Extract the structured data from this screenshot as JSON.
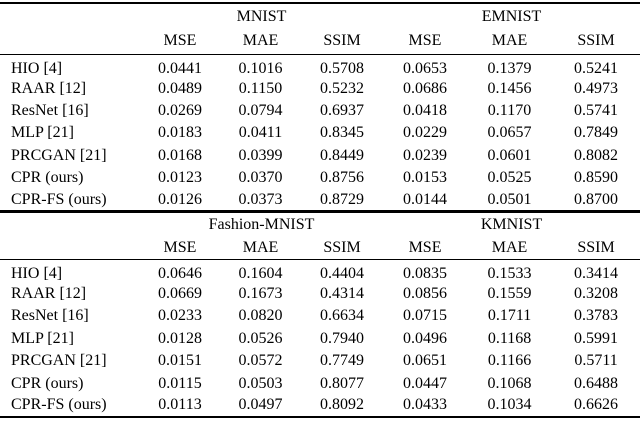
{
  "page": {
    "background_color": "#ffffff",
    "text_color": "#000000",
    "description": "Benchmark results tables comparing phase retrieval methods (MSE, MAE, SSIM) across four datasets"
  },
  "tables": [
    {
      "dataset_groups": [
        "MNIST",
        "EMNIST"
      ],
      "metric_headers": [
        "MSE",
        "MAE",
        "SSIM",
        "MSE",
        "MAE",
        "SSIM"
      ],
      "rows": [
        {
          "label": "HIO [4]",
          "values": [
            "0.0441",
            "0.1016",
            "0.5708",
            "0.0653",
            "0.1379",
            "0.5241"
          ],
          "bold": [
            false,
            false,
            false,
            false,
            false,
            false
          ]
        },
        {
          "label": "RAAR [12]",
          "values": [
            "0.0489",
            "0.1150",
            "0.5232",
            "0.0686",
            "0.1456",
            "0.4973"
          ],
          "bold": [
            false,
            false,
            false,
            false,
            false,
            false
          ]
        },
        {
          "label": "ResNet [16]",
          "values": [
            "0.0269",
            "0.0794",
            "0.6937",
            "0.0418",
            "0.1170",
            "0.5741"
          ],
          "bold": [
            false,
            false,
            false,
            false,
            false,
            false
          ]
        },
        {
          "label": "MLP [21]",
          "values": [
            "0.0183",
            "0.0411",
            "0.8345",
            "0.0229",
            "0.0657",
            "0.7849"
          ],
          "bold": [
            false,
            false,
            false,
            false,
            false,
            false
          ]
        },
        {
          "label": "PRCGAN [21]",
          "values": [
            "0.0168",
            "0.0399",
            "0.8449",
            "0.0239",
            "0.0601",
            "0.8082"
          ],
          "bold": [
            false,
            false,
            false,
            false,
            false,
            false
          ]
        },
        {
          "label": "CPR (ours)",
          "values": [
            "0.0123",
            "0.0370",
            "0.8756",
            "0.0153",
            "0.0525",
            "0.8590"
          ],
          "bold": [
            true,
            true,
            true,
            false,
            false,
            false
          ]
        },
        {
          "label": "CPR-FS (ours)",
          "values": [
            "0.0126",
            "0.0373",
            "0.8729",
            "0.0144",
            "0.0501",
            "0.8700"
          ],
          "bold": [
            false,
            false,
            false,
            true,
            true,
            true
          ]
        }
      ]
    },
    {
      "dataset_groups": [
        "Fashion-MNIST",
        "KMNIST"
      ],
      "metric_headers": [
        "MSE",
        "MAE",
        "SSIM",
        "MSE",
        "MAE",
        "SSIM"
      ],
      "rows": [
        {
          "label": "HIO [4]",
          "values": [
            "0.0646",
            "0.1604",
            "0.4404",
            "0.0835",
            "0.1533",
            "0.3414"
          ],
          "bold": [
            false,
            false,
            false,
            false,
            false,
            false
          ]
        },
        {
          "label": "RAAR [12]",
          "values": [
            "0.0669",
            "0.1673",
            "0.4314",
            "0.0856",
            "0.1559",
            "0.3208"
          ],
          "bold": [
            false,
            false,
            false,
            false,
            false,
            false
          ]
        },
        {
          "label": "ResNet [16]",
          "values": [
            "0.0233",
            "0.0820",
            "0.6634",
            "0.0715",
            "0.1711",
            "0.3783"
          ],
          "bold": [
            false,
            false,
            false,
            false,
            false,
            false
          ]
        },
        {
          "label": "MLP [21]",
          "values": [
            "0.0128",
            "0.0526",
            "0.7940",
            "0.0496",
            "0.1168",
            "0.5991"
          ],
          "bold": [
            false,
            false,
            false,
            false,
            false,
            false
          ]
        },
        {
          "label": "PRCGAN [21]",
          "values": [
            "0.0151",
            "0.0572",
            "0.7749",
            "0.0651",
            "0.1166",
            "0.5711"
          ],
          "bold": [
            false,
            false,
            false,
            false,
            false,
            false
          ]
        },
        {
          "label": "CPR (ours)",
          "values": [
            "0.0115",
            "0.0503",
            "0.8077",
            "0.0447",
            "0.1068",
            "0.6488"
          ],
          "bold": [
            false,
            false,
            false,
            false,
            false,
            false
          ]
        },
        {
          "label": "CPR-FS (ours)",
          "values": [
            "0.0113",
            "0.0497",
            "0.8092",
            "0.0433",
            "0.1034",
            "0.6626"
          ],
          "bold": [
            true,
            true,
            true,
            true,
            true,
            true
          ]
        }
      ]
    }
  ]
}
